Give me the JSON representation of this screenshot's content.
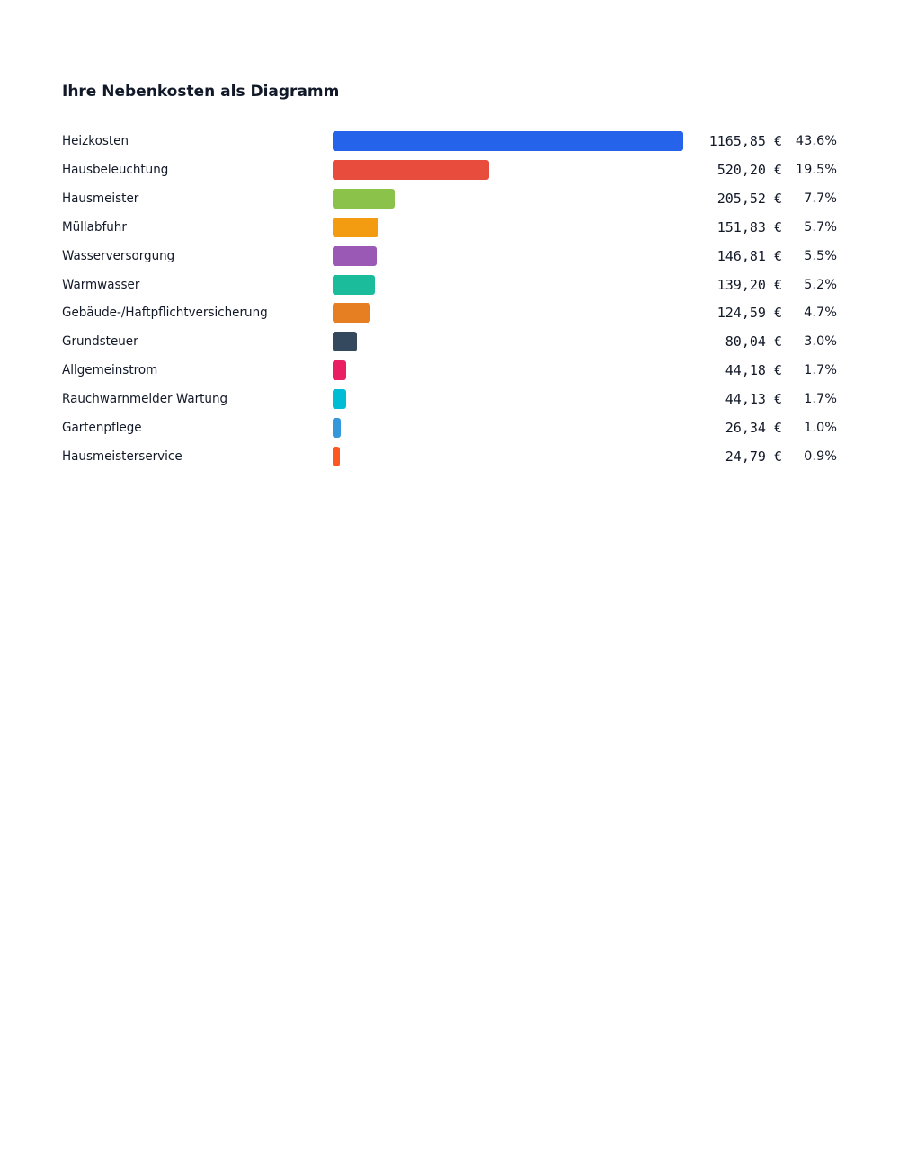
{
  "chart_data": {
    "type": "bar",
    "orientation": "horizontal",
    "title": "Ihre Nebenkosten als Diagramm",
    "currency": "€",
    "categories": [
      "Heizkosten",
      "Hausbeleuchtung",
      "Hausmeister",
      "Müllabfuhr",
      "Wasserversorgung",
      "Warmwasser",
      "Gebäude-/Haftpflichtversicherung",
      "Grundsteuer",
      "Allgemeinstrom",
      "Rauchwarnmelder Wartung",
      "Gartenpflege",
      "Hausmeisterservice"
    ],
    "values": [
      1165.85,
      520.2,
      205.52,
      151.83,
      146.81,
      139.2,
      124.59,
      80.04,
      44.18,
      44.13,
      26.34,
      24.79
    ],
    "value_labels": [
      "1165,85 €",
      "520,20 €",
      "205,52 €",
      "151,83 €",
      "146,81 €",
      "139,20 €",
      "124,59 €",
      "80,04 €",
      "44,18 €",
      "44,13 €",
      "26,34 €",
      "24,79 €"
    ],
    "percent_labels": [
      "43.6%",
      "19.5%",
      "7.7%",
      "5.7%",
      "5.5%",
      "5.2%",
      "4.7%",
      "3.0%",
      "1.7%",
      "1.7%",
      "1.0%",
      "0.9%"
    ],
    "colors": [
      "#2563eb",
      "#e74c3c",
      "#8bc34a",
      "#f39c12",
      "#9b59b6",
      "#1abc9c",
      "#e67e22",
      "#34495e",
      "#e91e63",
      "#00bcd4",
      "#3498db",
      "#ff5722"
    ]
  }
}
